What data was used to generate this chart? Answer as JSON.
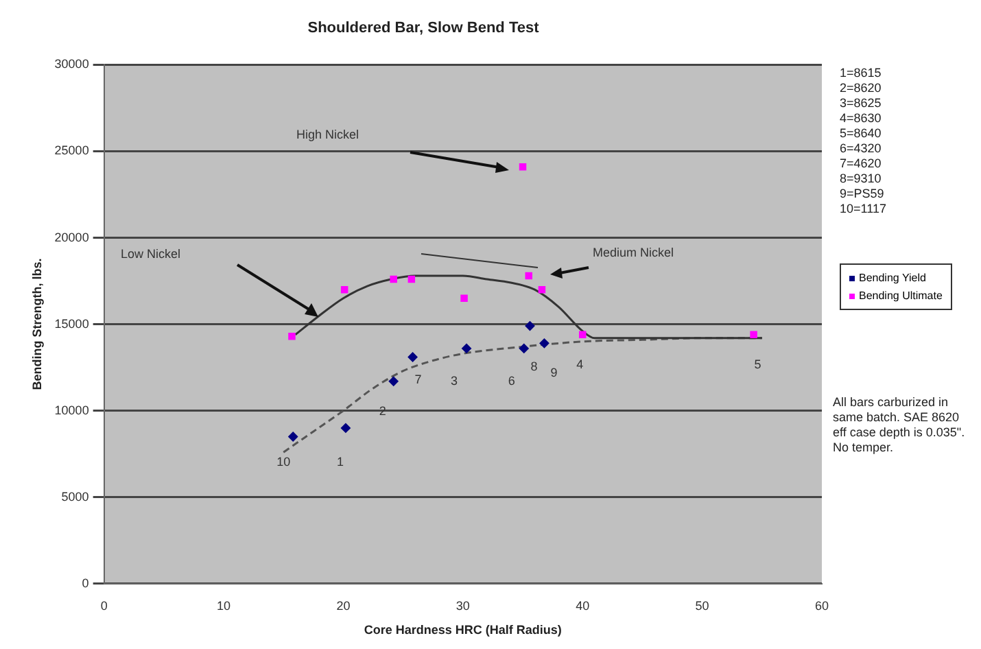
{
  "chart_data": {
    "type": "scatter",
    "title": "Shouldered Bar, Slow Bend Test",
    "xlabel": "Core Hardness HRC (Half Radius)",
    "ylabel": "Bending Strength, lbs.",
    "xlim": [
      0,
      60
    ],
    "xticks": [
      0,
      10,
      20,
      30,
      40,
      50,
      60
    ],
    "ylim": [
      0,
      30000
    ],
    "yticks": [
      0,
      5000,
      10000,
      15000,
      20000,
      25000,
      30000
    ],
    "grid": "y",
    "legend": "right",
    "series": [
      {
        "name": "Bending Yield",
        "type": "scatter",
        "marker": "diamond",
        "color": "#000080",
        "x": [
          15.8,
          20.2,
          24.2,
          25.8,
          30.3,
          35.1,
          35.6,
          36.8
        ],
        "values": [
          8500,
          9000,
          11700,
          13100,
          13600,
          13600,
          14900,
          13900
        ]
      },
      {
        "name": "Bending Ultimate",
        "type": "scatter",
        "marker": "square",
        "color": "#ff00ff",
        "x": [
          15.7,
          20.1,
          24.2,
          25.7,
          30.1,
          35,
          35.5,
          36.6,
          40,
          54.3
        ],
        "values": [
          14300,
          17000,
          17600,
          17600,
          16500,
          24100,
          17800,
          17000,
          14400,
          14400
        ]
      },
      {
        "type": "line",
        "marker": "none",
        "line_style": "solid",
        "color": "#333333",
        "x": [
          16,
          18,
          20,
          22,
          24,
          26,
          28,
          30,
          32,
          34,
          36,
          38,
          40,
          41,
          45,
          50,
          55
        ],
        "values": [
          14400,
          15500,
          16500,
          17200,
          17600,
          17800,
          17800,
          17800,
          17600,
          17400,
          17000,
          16000,
          14600,
          14200,
          14200,
          14200,
          14200
        ]
      },
      {
        "type": "line",
        "marker": "none",
        "line_style": "dashed",
        "color": "#555555",
        "x": [
          15,
          17.5,
          20,
          22.5,
          25,
          27.5,
          30,
          35,
          40,
          45,
          50,
          55
        ],
        "values": [
          7600,
          8800,
          10000,
          11300,
          12300,
          12900,
          13300,
          13700,
          14000,
          14100,
          14200,
          14200
        ]
      }
    ],
    "annotations": [
      "High Nickel",
      "Low Nickel",
      "Medium Nickel",
      {
        "text": "10",
        "x": 15.8,
        "y": 8500
      },
      {
        "text": "1",
        "x": 20.2,
        "y": 9000
      },
      {
        "text": "2",
        "x": 24.2,
        "y": 11700
      },
      {
        "text": "7",
        "x": 25.8,
        "y": 13100
      },
      {
        "text": "3",
        "x": 30.3,
        "y": 13600
      },
      {
        "text": "6",
        "x": 35.1,
        "y": 13600
      },
      {
        "text": "9",
        "x": 36.8,
        "y": 13900
      },
      {
        "text": "8",
        "x": 35.6,
        "y": 14900
      },
      {
        "text": "4",
        "x": 40,
        "y": 14400
      },
      {
        "text": "5",
        "x": 54.3,
        "y": 14400
      },
      "1=8615",
      "2=8620",
      "3=8625",
      "4=8630",
      "5=8640",
      "6=4320",
      "7=4620",
      "8=9310",
      "9=PS59",
      "10=1117",
      "All bars carburized in same batch. SAE 8620 eff case depth is 0.035\". No temper."
    ]
  }
}
